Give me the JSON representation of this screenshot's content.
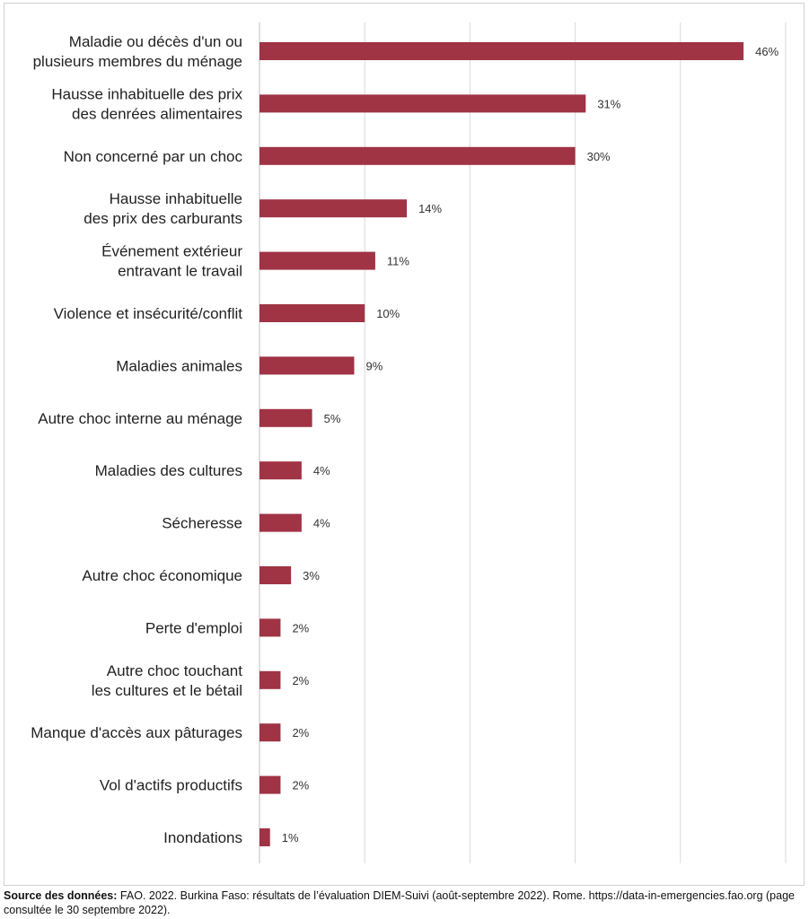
{
  "chart_data": {
    "type": "bar",
    "orientation": "horizontal",
    "categories": [
      [
        "Maladie ou décès d'un ou",
        "plusieurs membres du ménage"
      ],
      [
        "Hausse inhabituelle des prix",
        "des denrées alimentaires"
      ],
      [
        "Non concerné par un choc"
      ],
      [
        "Hausse inhabituelle",
        "des prix des carburants"
      ],
      [
        "Événement extérieur",
        "entravant le travail"
      ],
      [
        "Violence et insécurité/conflit"
      ],
      [
        "Maladies animales"
      ],
      [
        "Autre choc interne au ménage"
      ],
      [
        "Maladies des cultures"
      ],
      [
        "Sécheresse"
      ],
      [
        "Autre choc économique"
      ],
      [
        "Perte d'emploi"
      ],
      [
        "Autre choc touchant",
        "les cultures et le bétail"
      ],
      [
        "Manque d'accès aux pâturages"
      ],
      [
        "Vol d'actifs productifs"
      ],
      [
        "Inondations"
      ]
    ],
    "values": [
      46,
      31,
      30,
      14,
      11,
      10,
      9,
      5,
      4,
      4,
      3,
      2,
      2,
      2,
      2,
      1
    ],
    "value_labels": [
      "46%",
      "31%",
      "30%",
      "14%",
      "11%",
      "10%",
      "9%",
      "5%",
      "4%",
      "4%",
      "3%",
      "2%",
      "2%",
      "2%",
      "2%",
      "1%"
    ],
    "xlim": [
      0,
      50
    ],
    "grid": true,
    "bar_color": "#a03344",
    "grid_color": "#d9d9d9"
  },
  "source": {
    "label": "Source des données:",
    "text": " FAO. 2022. Burkina Faso: résultats de l’évaluation DIEM-Suivi (août-septembre 2022). Rome. https://data-in-emergencies.fao.org (page consultée le 30 septembre 2022)."
  }
}
